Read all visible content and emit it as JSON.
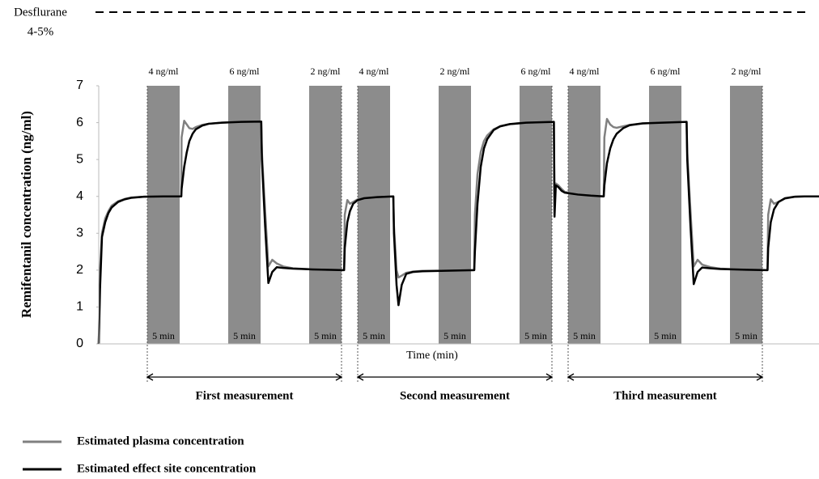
{
  "chart_data": {
    "type": "line",
    "annotation": {
      "text_lines": [
        "Desflurane",
        "4-5%"
      ]
    },
    "ylabel": "Remifentanil concentration (ng/ml)",
    "xlabel": "Time (min)",
    "xlim": [
      0,
      111.25
    ],
    "ylim": [
      0,
      7
    ],
    "yticks": [
      0,
      1,
      2,
      3,
      4,
      5,
      6,
      7
    ],
    "band_color": "#8c8c8c",
    "bands": [
      {
        "start": 7.5,
        "end": 12.5,
        "label": "4 ng/ml",
        "duration": "5 min"
      },
      {
        "start": 20,
        "end": 25,
        "label": "6 ng/ml",
        "duration": "5 min"
      },
      {
        "start": 32.5,
        "end": 37.5,
        "label": "2 ng/ml",
        "duration": "5 min"
      },
      {
        "start": 40,
        "end": 45,
        "label": "4 ng/ml",
        "duration": "5 min"
      },
      {
        "start": 52.5,
        "end": 57.5,
        "label": "2 ng/ml",
        "duration": "5 min"
      },
      {
        "start": 65,
        "end": 70,
        "label": "6 ng/ml",
        "duration": "5 min"
      },
      {
        "start": 72.5,
        "end": 77.5,
        "label": "4 ng/ml",
        "duration": "5 min"
      },
      {
        "start": 85,
        "end": 90,
        "label": "6 ng/ml",
        "duration": "5 min"
      },
      {
        "start": 97.5,
        "end": 102.5,
        "label": "2 ng/ml",
        "duration": "5 min"
      }
    ],
    "measurements": [
      {
        "start": 7.5,
        "end": 37.5,
        "label": "First measurement"
      },
      {
        "start": 40,
        "end": 70,
        "label": "Second measurement"
      },
      {
        "start": 72.5,
        "end": 102.5,
        "label": "Third measurement"
      }
    ],
    "x": [
      0,
      0.2,
      0.5,
      1,
      1.5,
      2,
      3,
      4,
      5,
      7,
      10,
      12.75,
      12.8,
      13.2,
      13.6,
      14,
      14.5,
      15,
      16,
      17,
      19,
      22,
      25.1,
      25.2,
      25.7,
      26.2,
      26.8,
      27.5,
      28.5,
      30,
      33,
      37.9,
      38,
      38.4,
      38.8,
      39.3,
      40,
      41,
      43,
      45.5,
      45.6,
      46,
      46.3,
      46.8,
      47.5,
      48.5,
      50,
      55,
      58,
      58.1,
      58.5,
      59,
      59.5,
      60,
      61,
      62,
      63.5,
      66,
      70.3,
      70.4,
      70.6,
      71,
      71.5,
      72,
      74,
      76,
      78,
      78.1,
      78.5,
      79,
      79.5,
      80,
      81,
      82,
      84,
      87,
      90.8,
      90.9,
      91.4,
      91.9,
      92.5,
      93.2,
      94.5,
      96,
      100,
      103.3,
      103.4,
      103.8,
      104.3,
      105,
      106,
      107.5,
      109,
      111.25
    ],
    "series": [
      {
        "name": "Estimated plasma concentration",
        "color": "#808080",
        "values": [
          0,
          2.0,
          3.0,
          3.4,
          3.6,
          3.75,
          3.87,
          3.93,
          3.97,
          3.99,
          4.0,
          4.0,
          5.6,
          6.05,
          5.95,
          5.85,
          5.83,
          5.88,
          5.94,
          5.97,
          6.0,
          6.02,
          6.03,
          5.2,
          3.6,
          2.1,
          2.28,
          2.18,
          2.1,
          2.05,
          2.02,
          2.0,
          3.5,
          3.9,
          3.8,
          3.85,
          3.92,
          3.96,
          3.98,
          4.0,
          3.2,
          2.0,
          1.8,
          1.85,
          1.93,
          1.96,
          1.98,
          1.99,
          2.0,
          3.5,
          4.6,
          5.2,
          5.5,
          5.65,
          5.82,
          5.9,
          5.96,
          6.0,
          6.02,
          4.0,
          4.35,
          4.3,
          4.2,
          4.12,
          4.05,
          4.02,
          4.0,
          5.6,
          6.1,
          5.95,
          5.88,
          5.86,
          5.9,
          5.94,
          5.98,
          6.0,
          6.02,
          5.2,
          3.6,
          2.1,
          2.28,
          2.15,
          2.08,
          2.04,
          2.01,
          2.0,
          3.5,
          3.92,
          3.8,
          3.85,
          3.94,
          3.99,
          4.0,
          4.0
        ]
      },
      {
        "name": "Estimated effect site concentration",
        "color": "#000000",
        "values": [
          0,
          1.5,
          2.9,
          3.3,
          3.55,
          3.7,
          3.85,
          3.92,
          3.96,
          3.99,
          4.0,
          4.0,
          4.2,
          4.8,
          5.2,
          5.5,
          5.7,
          5.82,
          5.92,
          5.97,
          6.0,
          6.02,
          6.03,
          5.0,
          3.2,
          1.65,
          1.95,
          2.08,
          2.06,
          2.04,
          2.02,
          2.0,
          2.6,
          3.3,
          3.6,
          3.8,
          3.9,
          3.95,
          3.98,
          4.0,
          3.0,
          1.6,
          1.05,
          1.6,
          1.9,
          1.95,
          1.97,
          1.99,
          2.0,
          2.5,
          3.8,
          4.8,
          5.3,
          5.55,
          5.8,
          5.9,
          5.96,
          6.0,
          6.02,
          3.45,
          4.3,
          4.25,
          4.15,
          4.1,
          4.05,
          4.02,
          4.0,
          4.3,
          4.9,
          5.3,
          5.55,
          5.7,
          5.85,
          5.93,
          5.98,
          6.0,
          6.02,
          5.0,
          3.2,
          1.62,
          1.95,
          2.07,
          2.05,
          2.03,
          2.01,
          2.0,
          2.6,
          3.3,
          3.65,
          3.85,
          3.95,
          3.99,
          4.0,
          4.0
        ]
      }
    ]
  }
}
